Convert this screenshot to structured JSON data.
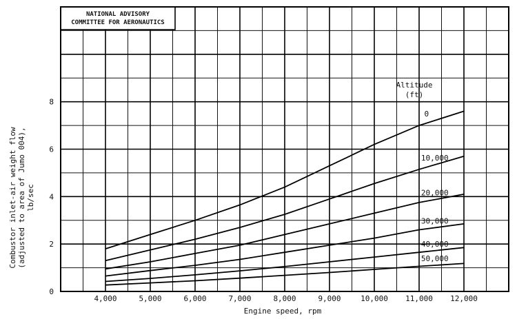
{
  "stamp": {
    "line1": "NATIONAL ADVISORY",
    "line2": "COMMITTEE FOR AERONAUTICS"
  },
  "chart_data": {
    "type": "line",
    "xlabel": "Engine speed, rpm",
    "ylabel_lines": [
      "Combustor inlet-air weight flow",
      "(adjusted to area of Jumo 004),",
      "lb/sec"
    ],
    "xlim": [
      3000,
      13000
    ],
    "ylim": [
      0,
      12
    ],
    "x_ticks": [
      4000,
      5000,
      6000,
      7000,
      8000,
      9000,
      10000,
      11000,
      12000
    ],
    "x_tick_labels": [
      "4,000",
      "5,000",
      "6,000",
      "7,000",
      "8,000",
      "9,000",
      "10,000",
      "11,000",
      "12,000"
    ],
    "y_ticks": [
      0,
      2,
      4,
      6,
      8
    ],
    "y_tick_labels": [
      "0",
      "2",
      "4",
      "6",
      "8"
    ],
    "grid": true,
    "legend_title_lines": [
      "Altitude",
      "(ft)"
    ],
    "series": [
      {
        "name": "0",
        "x": [
          4000,
          5000,
          6000,
          7000,
          8000,
          9000,
          10000,
          11000,
          12000
        ],
        "y": [
          1.8,
          2.4,
          3.0,
          3.65,
          4.4,
          5.3,
          6.2,
          7.0,
          7.6
        ]
      },
      {
        "name": "10,000",
        "x": [
          4000,
          5000,
          6000,
          7000,
          8000,
          9000,
          10000,
          11000,
          12000
        ],
        "y": [
          1.3,
          1.75,
          2.2,
          2.7,
          3.25,
          3.9,
          4.55,
          5.15,
          5.7
        ]
      },
      {
        "name": "20,000",
        "x": [
          4000,
          5000,
          6000,
          7000,
          8000,
          9000,
          10000,
          11000,
          12000
        ],
        "y": [
          0.95,
          1.25,
          1.6,
          1.95,
          2.4,
          2.85,
          3.3,
          3.75,
          4.1
        ]
      },
      {
        "name": "30,000",
        "x": [
          4000,
          5000,
          6000,
          7000,
          8000,
          9000,
          10000,
          11000,
          12000
        ],
        "y": [
          0.65,
          0.88,
          1.1,
          1.35,
          1.65,
          1.95,
          2.25,
          2.6,
          2.85
        ]
      },
      {
        "name": "40,000",
        "x": [
          4000,
          5000,
          6000,
          7000,
          8000,
          9000,
          10000,
          11000,
          12000
        ],
        "y": [
          0.42,
          0.55,
          0.7,
          0.87,
          1.05,
          1.25,
          1.45,
          1.65,
          1.85
        ]
      },
      {
        "name": "50,000",
        "x": [
          4000,
          5000,
          6000,
          7000,
          8000,
          9000,
          10000,
          11000,
          12000
        ],
        "y": [
          0.27,
          0.36,
          0.45,
          0.56,
          0.68,
          0.8,
          0.93,
          1.06,
          1.18
        ]
      }
    ]
  }
}
